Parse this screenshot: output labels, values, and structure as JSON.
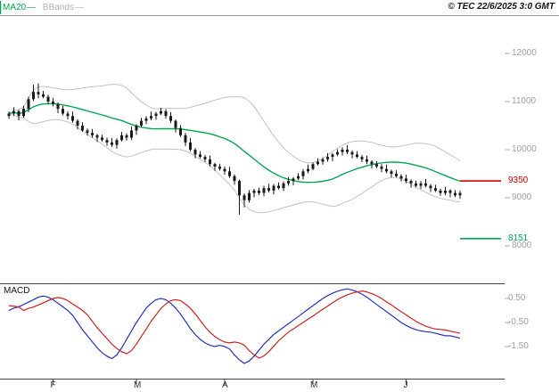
{
  "header": {
    "ma20_label": "MA20",
    "ma20_dash": "—",
    "bbands_label": "BBands",
    "bbands_dash": "—",
    "copyright": "© TEC 22/6/2025 3:0 GMT"
  },
  "macd_panel_label": "MACD",
  "colors": {
    "ma20": "#00a651",
    "bbands": "#c2c2c2",
    "candle": "#1a1a1a",
    "resistance": "#cc0000",
    "support": "#00a651",
    "axis_text": "#a0a0a0"
  },
  "chart_data": [
    {
      "type": "candlestick",
      "panel": "price",
      "overlays": [
        "MA20",
        "Bollinger Bands (20,2)"
      ],
      "y_ticks": [
        {
          "label": "12000",
          "value": 12000
        },
        {
          "label": "11000",
          "value": 11000
        },
        {
          "label": "10000",
          "value": 10000
        },
        {
          "label": "9000",
          "value": 9000
        },
        {
          "label": "8000",
          "value": 8000
        }
      ],
      "levels": [
        {
          "label": "9350",
          "value": 9350,
          "color": "#cc0000"
        },
        {
          "label": "8151",
          "value": 8151,
          "color": "#00a651"
        }
      ],
      "x_months": [
        {
          "label": "F",
          "index": 9
        },
        {
          "label": "M",
          "index": 26
        },
        {
          "label": "A",
          "index": 44
        },
        {
          "label": "M",
          "index": 62
        },
        {
          "label": "J",
          "index": 81
        }
      ],
      "candles": [
        [
          10700,
          10790,
          10640,
          10750
        ],
        [
          10750,
          10880,
          10700,
          10800
        ],
        [
          10800,
          10830,
          10610,
          10700
        ],
        [
          10700,
          10910,
          10665,
          10850
        ],
        [
          10850,
          11100,
          10780,
          11050
        ],
        [
          11050,
          11350,
          11010,
          11200
        ],
        [
          11200,
          11380,
          11070,
          11150
        ],
        [
          11150,
          11220,
          11070,
          11100
        ],
        [
          11100,
          11140,
          10940,
          11000
        ],
        [
          11000,
          11080,
          10900,
          10950
        ],
        [
          10950,
          10980,
          10760,
          10850
        ],
        [
          10850,
          10910,
          10715,
          10750
        ],
        [
          10750,
          10800,
          10630,
          10700
        ],
        [
          10700,
          10790,
          10560,
          10600
        ],
        [
          10600,
          10635,
          10420,
          10500
        ],
        [
          10500,
          10570,
          10370,
          10400
        ],
        [
          10400,
          10440,
          10290,
          10350
        ],
        [
          10350,
          10430,
          10250,
          10300
        ],
        [
          10300,
          10330,
          10160,
          10250
        ],
        [
          10250,
          10310,
          10165,
          10200
        ],
        [
          10200,
          10250,
          10080,
          10150
        ],
        [
          10150,
          10240,
          10060,
          10100
        ],
        [
          10100,
          10235,
          10020,
          10200
        ],
        [
          10200,
          10370,
          10170,
          10300
        ],
        [
          10300,
          10340,
          10190,
          10250
        ],
        [
          10250,
          10480,
          10200,
          10400
        ],
        [
          10400,
          10530,
          10310,
          10500
        ],
        [
          10500,
          10660,
          10465,
          10600
        ],
        [
          10600,
          10700,
          10530,
          10650
        ],
        [
          10650,
          10790,
          10610,
          10700
        ],
        [
          10700,
          10785,
          10620,
          10750
        ],
        [
          10750,
          10870,
          10720,
          10800
        ],
        [
          10800,
          10840,
          10640,
          10700
        ],
        [
          10700,
          10780,
          10550,
          10600
        ],
        [
          10600,
          10630,
          10360,
          10450
        ],
        [
          10450,
          10510,
          10265,
          10300
        ],
        [
          10300,
          10350,
          10080,
          10150
        ],
        [
          10150,
          10240,
          9960,
          10000
        ],
        [
          10000,
          10035,
          9820,
          9900
        ],
        [
          9900,
          9970,
          9820,
          9850
        ],
        [
          9850,
          9890,
          9740,
          9800
        ],
        [
          9800,
          9880,
          9650,
          9700
        ],
        [
          9700,
          9730,
          9560,
          9650
        ],
        [
          9650,
          9710,
          9565,
          9600
        ],
        [
          9600,
          9650,
          9480,
          9550
        ],
        [
          9550,
          9640,
          9410,
          9450
        ],
        [
          9450,
          9485,
          9270,
          9350
        ],
        [
          9350,
          9380,
          8650,
          9050
        ],
        [
          9050,
          9090,
          8800,
          8950
        ],
        [
          8950,
          9160,
          8900,
          9100
        ],
        [
          9100,
          9185,
          9010,
          9150
        ],
        [
          9150,
          9210,
          9060,
          9100
        ],
        [
          9100,
          9250,
          9030,
          9200
        ],
        [
          9200,
          9290,
          9110,
          9150
        ],
        [
          9150,
          9285,
          9070,
          9250
        ],
        [
          9250,
          9320,
          9170,
          9200
        ],
        [
          9200,
          9340,
          9140,
          9300
        ],
        [
          9300,
          9430,
          9250,
          9350
        ],
        [
          9350,
          9430,
          9260,
          9400
        ],
        [
          9400,
          9510,
          9365,
          9450
        ],
        [
          9450,
          9600,
          9380,
          9550
        ],
        [
          9550,
          9690,
          9510,
          9600
        ],
        [
          9600,
          9735,
          9570,
          9700
        ],
        [
          9700,
          9820,
          9670,
          9750
        ],
        [
          9750,
          9840,
          9690,
          9800
        ],
        [
          9800,
          9930,
          9750,
          9850
        ],
        [
          9850,
          9930,
          9760,
          9900
        ],
        [
          9900,
          10010,
          9865,
          9950
        ],
        [
          9950,
          10050,
          9880,
          10000
        ],
        [
          10000,
          10090,
          9910,
          9950
        ],
        [
          9950,
          9985,
          9820,
          9900
        ],
        [
          9900,
          9970,
          9820,
          9850
        ],
        [
          9850,
          9890,
          9740,
          9800
        ],
        [
          9800,
          9880,
          9700,
          9750
        ],
        [
          9750,
          9780,
          9610,
          9700
        ],
        [
          9700,
          9760,
          9615,
          9650
        ],
        [
          9650,
          9700,
          9530,
          9600
        ],
        [
          9600,
          9690,
          9510,
          9550
        ],
        [
          9550,
          9585,
          9420,
          9500
        ],
        [
          9500,
          9570,
          9420,
          9450
        ],
        [
          9450,
          9490,
          9340,
          9400
        ],
        [
          9400,
          9480,
          9300,
          9350
        ],
        [
          9350,
          9380,
          9210,
          9300
        ],
        [
          9300,
          9360,
          9215,
          9250
        ],
        [
          9250,
          9350,
          9180,
          9300
        ],
        [
          9300,
          9390,
          9215,
          9250
        ],
        [
          9250,
          9285,
          9120,
          9200
        ],
        [
          9200,
          9270,
          9120,
          9150
        ],
        [
          9150,
          9190,
          9040,
          9100
        ],
        [
          9100,
          9230,
          9050,
          9150
        ],
        [
          9150,
          9180,
          9010,
          9100
        ],
        [
          9100,
          9160,
          9015,
          9050
        ],
        [
          9050,
          9150,
          8980,
          9100
        ]
      ]
    },
    {
      "type": "line",
      "panel": "macd",
      "y_ticks": [
        {
          "label": "0.50",
          "value": 0.5
        },
        {
          "label": "-0.50",
          "value": -0.5
        },
        {
          "label": "-1.50",
          "value": -1.5
        }
      ],
      "series": [
        {
          "name": "MACD",
          "color": "#2233bb",
          "values": [
            0.0,
            0.1,
            0.15,
            0.25,
            0.35,
            0.45,
            0.55,
            0.6,
            0.55,
            0.45,
            0.3,
            0.15,
            0.0,
            -0.2,
            -0.5,
            -0.8,
            -1.05,
            -1.3,
            -1.55,
            -1.75,
            -1.9,
            -2.0,
            -1.85,
            -1.55,
            -1.2,
            -0.85,
            -0.5,
            -0.2,
            0.1,
            0.3,
            0.45,
            0.5,
            0.45,
            0.3,
            0.1,
            -0.15,
            -0.45,
            -0.75,
            -1.0,
            -1.2,
            -1.35,
            -1.45,
            -1.5,
            -1.45,
            -1.5,
            -1.6,
            -1.85,
            -2.05,
            -2.2,
            -2.1,
            -1.9,
            -1.65,
            -1.4,
            -1.2,
            -1.0,
            -0.85,
            -0.7,
            -0.55,
            -0.4,
            -0.25,
            -0.1,
            0.05,
            0.2,
            0.35,
            0.5,
            0.62,
            0.72,
            0.8,
            0.86,
            0.9,
            0.85,
            0.78,
            0.68,
            0.55,
            0.4,
            0.25,
            0.1,
            -0.05,
            -0.2,
            -0.35,
            -0.5,
            -0.62,
            -0.72,
            -0.8,
            -0.85,
            -0.88,
            -0.9,
            -0.95,
            -1.0,
            -1.05,
            -1.05,
            -1.1,
            -1.15
          ]
        },
        {
          "name": "Signal",
          "color": "#cc2222",
          "values": [
            0.2,
            0.18,
            0.15,
            0.0,
            0.09,
            0.14,
            0.23,
            0.32,
            0.41,
            0.5,
            0.54,
            0.5,
            0.41,
            0.27,
            0.14,
            0.0,
            -0.18,
            -0.45,
            -0.72,
            -0.95,
            -1.17,
            -1.4,
            -1.58,
            -1.71,
            -1.8,
            -1.67,
            -1.4,
            -1.08,
            -0.77,
            -0.45,
            -0.18,
            0.09,
            0.27,
            0.41,
            0.45,
            0.41,
            0.27,
            0.09,
            -0.14,
            -0.41,
            -0.68,
            -0.9,
            -1.08,
            -1.22,
            -1.31,
            -1.35,
            -1.31,
            -1.35,
            -1.44,
            -1.67,
            -1.85,
            -1.98,
            -1.89,
            -1.71,
            -1.49,
            -1.26,
            -1.08,
            -0.9,
            -0.77,
            -0.63,
            -0.5,
            -0.36,
            -0.23,
            -0.09,
            0.05,
            0.18,
            0.32,
            0.45,
            0.56,
            0.65,
            0.72,
            0.77,
            0.81,
            0.77,
            0.7,
            0.61,
            0.5,
            0.36,
            0.23,
            0.09,
            -0.05,
            -0.18,
            -0.32,
            -0.45,
            -0.56,
            -0.65,
            -0.72,
            -0.77,
            -0.79,
            -0.81,
            -0.86,
            -0.9,
            -0.95
          ]
        }
      ]
    }
  ]
}
